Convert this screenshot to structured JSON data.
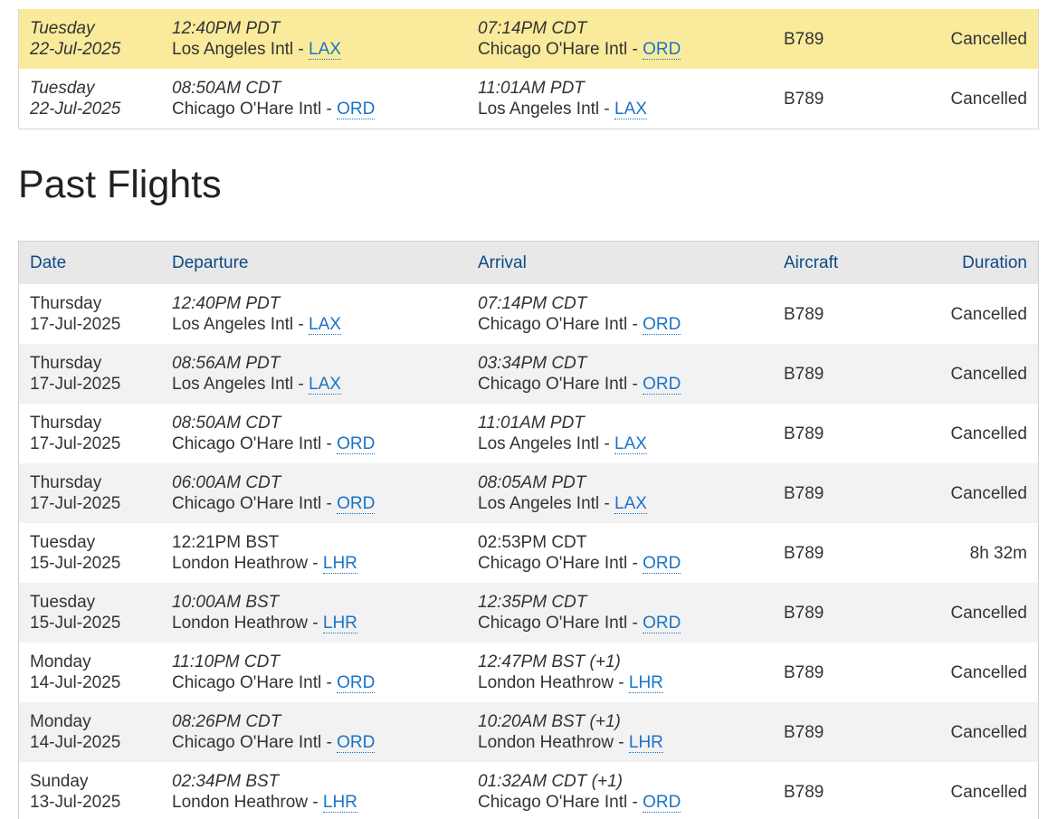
{
  "top_rows": [
    {
      "highlight": true,
      "date_day": "Tuesday",
      "date": "22-Jul-2025",
      "dep_time": "12:40PM PDT",
      "dep_airport": "Los Angeles Intl - ",
      "dep_code": "LAX",
      "arr_time": "07:14PM CDT",
      "arr_airport": "Chicago O'Hare Intl - ",
      "arr_code": "ORD",
      "aircraft": "B789",
      "duration": "Cancelled"
    },
    {
      "highlight": false,
      "date_day": "Tuesday",
      "date": "22-Jul-2025",
      "dep_time": "08:50AM CDT",
      "dep_airport": "Chicago O'Hare Intl - ",
      "dep_code": "ORD",
      "arr_time": "11:01AM PDT",
      "arr_airport": "Los Angeles Intl - ",
      "arr_code": "LAX",
      "aircraft": "B789",
      "duration": "Cancelled"
    }
  ],
  "past_flights": {
    "title": "Past Flights",
    "headers": {
      "date": "Date",
      "departure": "Departure",
      "arrival": "Arrival",
      "aircraft": "Aircraft",
      "duration": "Duration"
    },
    "rows": [
      {
        "date_day": "Thursday",
        "date": "17-Jul-2025",
        "dep_time": "12:40PM PDT",
        "dep_airport": "Los Angeles Intl - ",
        "dep_code": "LAX",
        "arr_time": "07:14PM CDT",
        "arr_airport": "Chicago O'Hare Intl - ",
        "arr_code": "ORD",
        "aircraft": "B789",
        "duration": "Cancelled",
        "italic_times": true
      },
      {
        "date_day": "Thursday",
        "date": "17-Jul-2025",
        "dep_time": "08:56AM PDT",
        "dep_airport": "Los Angeles Intl - ",
        "dep_code": "LAX",
        "arr_time": "03:34PM CDT",
        "arr_airport": "Chicago O'Hare Intl - ",
        "arr_code": "ORD",
        "aircraft": "B789",
        "duration": "Cancelled",
        "italic_times": true
      },
      {
        "date_day": "Thursday",
        "date": "17-Jul-2025",
        "dep_time": "08:50AM CDT",
        "dep_airport": "Chicago O'Hare Intl - ",
        "dep_code": "ORD",
        "arr_time": "11:01AM PDT",
        "arr_airport": "Los Angeles Intl - ",
        "arr_code": "LAX",
        "aircraft": "B789",
        "duration": "Cancelled",
        "italic_times": true
      },
      {
        "date_day": "Thursday",
        "date": "17-Jul-2025",
        "dep_time": "06:00AM CDT",
        "dep_airport": "Chicago O'Hare Intl - ",
        "dep_code": "ORD",
        "arr_time": "08:05AM PDT",
        "arr_airport": "Los Angeles Intl - ",
        "arr_code": "LAX",
        "aircraft": "B789",
        "duration": "Cancelled",
        "italic_times": true
      },
      {
        "date_day": "Tuesday",
        "date": "15-Jul-2025",
        "dep_time": "12:21PM BST",
        "dep_airport": "London Heathrow - ",
        "dep_code": "LHR",
        "arr_time": "02:53PM CDT",
        "arr_airport": "Chicago O'Hare Intl - ",
        "arr_code": "ORD",
        "aircraft": "B789",
        "duration": "8h 32m",
        "italic_times": false
      },
      {
        "date_day": "Tuesday",
        "date": "15-Jul-2025",
        "dep_time": "10:00AM BST",
        "dep_airport": "London Heathrow - ",
        "dep_code": "LHR",
        "arr_time": "12:35PM CDT",
        "arr_airport": "Chicago O'Hare Intl - ",
        "arr_code": "ORD",
        "aircraft": "B789",
        "duration": "Cancelled",
        "italic_times": true
      },
      {
        "date_day": "Monday",
        "date": "14-Jul-2025",
        "dep_time": "11:10PM CDT",
        "dep_airport": "Chicago O'Hare Intl - ",
        "dep_code": "ORD",
        "arr_time": "12:47PM BST (+1)",
        "arr_airport": "London Heathrow - ",
        "arr_code": "LHR",
        "aircraft": "B789",
        "duration": "Cancelled",
        "italic_times": true
      },
      {
        "date_day": "Monday",
        "date": "14-Jul-2025",
        "dep_time": "08:26PM CDT",
        "dep_airport": "Chicago O'Hare Intl - ",
        "dep_code": "ORD",
        "arr_time": "10:20AM BST (+1)",
        "arr_airport": "London Heathrow - ",
        "arr_code": "LHR",
        "aircraft": "B789",
        "duration": "Cancelled",
        "italic_times": true
      },
      {
        "date_day": "Sunday",
        "date": "13-Jul-2025",
        "dep_time": "02:34PM BST",
        "dep_airport": "London Heathrow - ",
        "dep_code": "LHR",
        "arr_time": "01:32AM CDT (+1)",
        "arr_airport": "Chicago O'Hare Intl - ",
        "arr_code": "ORD",
        "aircraft": "B789",
        "duration": "Cancelled",
        "italic_times": true
      }
    ]
  },
  "colors": {
    "highlight_row": "#faeb9c",
    "link": "#1a73c8",
    "header_text": "#0c4a86",
    "header_bg": "#e8e8e8",
    "zebra": "#f2f2f2"
  }
}
